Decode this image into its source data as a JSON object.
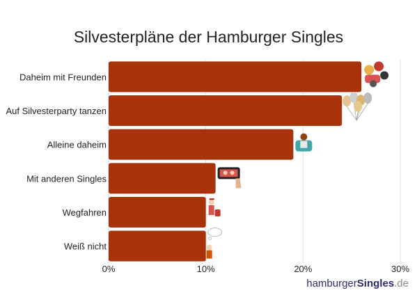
{
  "chart_data": {
    "type": "bar",
    "orientation": "horizontal",
    "title": "Silvesterpläne der Hamburger Singles",
    "categories": [
      "Daheim mit Freunden",
      "Auf Silvesterparty tanzen",
      "Alleine daheim",
      "Mit anderen Singles",
      "Wegfahren",
      "Weiß nicht"
    ],
    "values": [
      26,
      24,
      19,
      11,
      10,
      10
    ],
    "xlim": [
      0,
      30
    ],
    "xticks": [
      0,
      10,
      20,
      30
    ],
    "tick_labels": [
      "0%",
      "10%",
      "20%",
      "30%"
    ],
    "bar_color": "#a8320a",
    "grid": true,
    "icons": [
      "friends-group-icon",
      "balloons-icon",
      "armchair-person-icon",
      "phone-video-chat-icon",
      "traveler-suitcase-icon",
      "thinking-person-icon"
    ]
  },
  "brand": {
    "part1": "hamburger",
    "part2": "Singles",
    "part3": ".de"
  }
}
